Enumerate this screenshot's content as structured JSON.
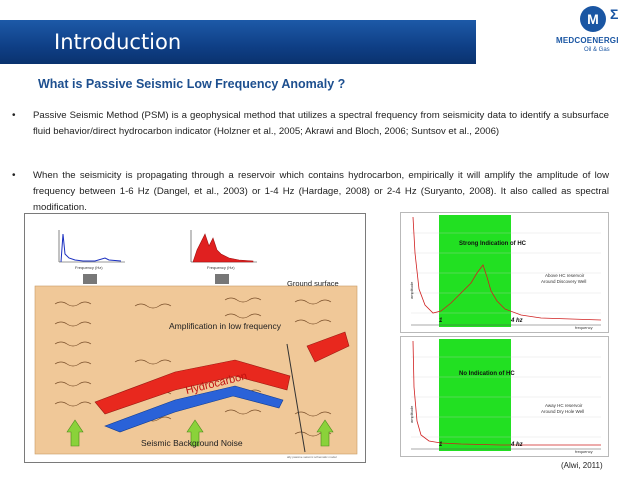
{
  "header": {
    "title": "Introduction",
    "logo_mark": "M",
    "logo_sigma": "Σ",
    "logo_name": "MEDCOENERGI",
    "logo_sub": "Oil & Gas"
  },
  "subtitle": "What is Passive Seismic Low Frequency Anomaly ?",
  "bullets": [
    {
      "marker": "•",
      "text": "Passive Seismic Method (PSM) is a geophysical method that utilizes a spectral frequency from seismicity data to identify a subsurface fluid behavior/direct hydrocarbon indicator (Holzner et al., 2005; Akrawi and Bloch, 2006; Suntsov et al., 2006)"
    },
    {
      "marker": "•",
      "text": "When the seismicity is propagating through a reservoir which contains hydrocarbon, empirically it will amplify the amplitude of low frequency between 1-6 Hz (Dangel, et al., 2003) or 1-4 Hz (Hardage, 2008) or 2-4 Hz (Suryanto, 2008). It also called as spectral modification."
    }
  ],
  "diagram": {
    "ground_surface": "Ground surface",
    "amplification": "Amplification in low frequency",
    "hydrocarbon": "Hydrocarbon",
    "background_noise": "Seismic Background Noise",
    "credit": "ally passive seismic schematic model",
    "spectrum_left_xlabel": "Frequency (Hz)",
    "spectrum_right_xlabel": "Frequency (Hz)",
    "spectrum_ylabel": "Amplitude"
  },
  "graphs": [
    {
      "label": "Strong Indication of HC",
      "legend_line1": "Above HC reservoir",
      "legend_line2": "Around Discovery Well",
      "ylabel": "amplitude",
      "xlabel": "frequency",
      "marker_low": "1",
      "marker_high": "4 hz"
    },
    {
      "label": "No Indication of HC",
      "legend_line1": "Away HC reservoir",
      "legend_line2": "Around Dry Hole Well",
      "ylabel": "amplitude",
      "xlabel": "frequency",
      "marker_low": "1",
      "marker_high": "4 hz"
    }
  ],
  "citation": "(Alwi, 2011)",
  "colors": {
    "header_blue": "#0f3f86",
    "subtitle_blue": "#1d4f8f",
    "band_green": "#22e022",
    "spectrum_red": "#e02020",
    "hydrocarbon_red": "#e8281e",
    "arrow_green": "#8ad23a",
    "earth_tan": "#f0c898"
  }
}
